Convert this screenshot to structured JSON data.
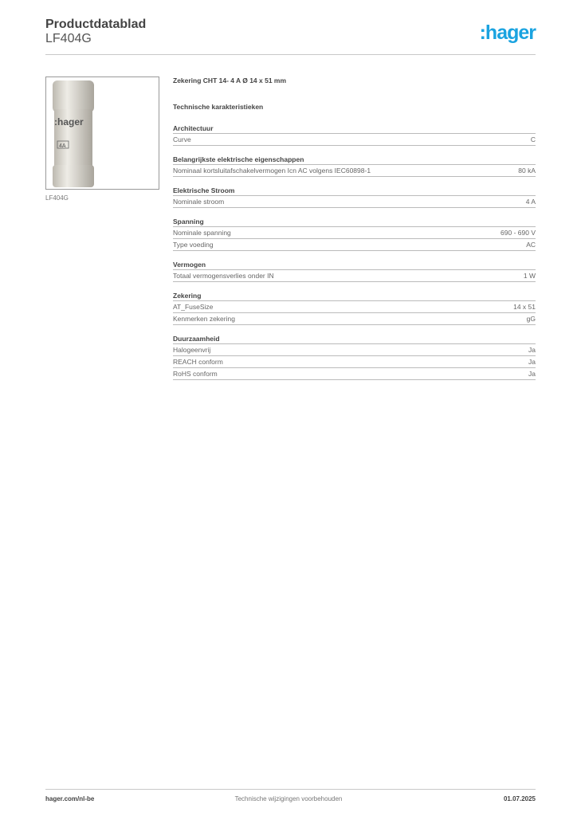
{
  "header": {
    "title": "Productdatablad",
    "subtitle": "LF404G",
    "logo": ":hager",
    "brand_color": "#1aa3e0"
  },
  "image": {
    "caption": "LF404G",
    "fuse_brand": ":hager",
    "fuse_rating": "4A"
  },
  "product_name": "Zekering CHT 14- 4 A Ø 14 x 51 mm",
  "section_title": "Technische karakteristieken",
  "groups": [
    {
      "title": "Architectuur",
      "rows": [
        {
          "label": "Curve",
          "value": "C"
        }
      ]
    },
    {
      "title": "Belangrijkste elektrische eigenschappen",
      "rows": [
        {
          "label": "Nominaal kortsluitafschakelvermogen Icn AC volgens IEC60898-1",
          "value": "80 kA"
        }
      ]
    },
    {
      "title": "Elektrische Stroom",
      "rows": [
        {
          "label": "Nominale stroom",
          "value": "4 A"
        }
      ]
    },
    {
      "title": "Spanning",
      "rows": [
        {
          "label": "Nominale spanning",
          "value": "690 - 690 V"
        },
        {
          "label": "Type voeding",
          "value": "AC"
        }
      ]
    },
    {
      "title": "Vermogen",
      "rows": [
        {
          "label": "Totaal vermogensverlies onder IN",
          "value": "1 W"
        }
      ]
    },
    {
      "title": "Zekering",
      "rows": [
        {
          "label": "AT_FuseSize",
          "value": "14 x 51"
        },
        {
          "label": "Kenmerken zekering",
          "value": "gG"
        }
      ]
    },
    {
      "title": "Duurzaamheid",
      "rows": [
        {
          "label": "Halogeenvrij",
          "value": "Ja"
        },
        {
          "label": "REACH conform",
          "value": "Ja"
        },
        {
          "label": "RoHS conform",
          "value": "Ja"
        }
      ]
    }
  ],
  "footer": {
    "website": "hager.com/nl-be",
    "notice": "Technische wijzigingen voorbehouden",
    "date": "01.07.2025"
  }
}
